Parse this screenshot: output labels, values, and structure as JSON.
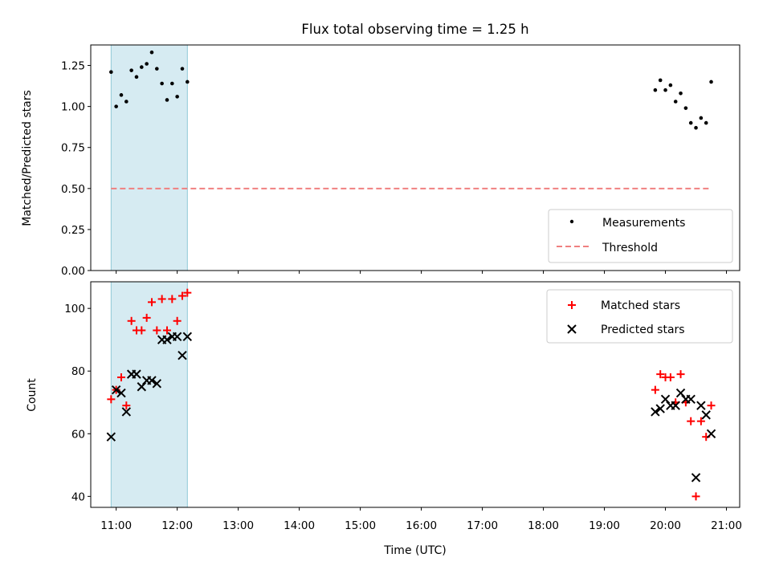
{
  "chart_data": [
    {
      "type": "scatter",
      "title": "Flux total observing time = 1.25 h",
      "xlabel": "",
      "ylabel": "Matched/Predicted stars",
      "xlim": [
        "10:35",
        "21:13"
      ],
      "ylim": [
        0,
        1.375
      ],
      "yticks": [
        "0.00",
        "0.25",
        "0.50",
        "0.75",
        "1.00",
        "1.25"
      ],
      "highlight_span": {
        "from": "10:55",
        "to": "12:10",
        "color": "#add8e6"
      },
      "legend_position": "lower-right",
      "series": [
        {
          "name": "Measurements",
          "color": "#000000",
          "marker": "dot",
          "x": [
            "10:55",
            "11:00",
            "11:05",
            "11:10",
            "11:15",
            "11:20",
            "11:25",
            "11:30",
            "11:35",
            "11:40",
            "11:45",
            "11:50",
            "11:55",
            "12:00",
            "12:05",
            "12:10",
            "19:50",
            "19:55",
            "20:00",
            "20:05",
            "20:10",
            "20:15",
            "20:20",
            "20:25",
            "20:30",
            "20:35",
            "20:40",
            "20:45"
          ],
          "y": [
            1.21,
            1.0,
            1.07,
            1.03,
            1.22,
            1.18,
            1.24,
            1.26,
            1.33,
            1.23,
            1.14,
            1.04,
            1.14,
            1.06,
            1.23,
            1.15,
            1.1,
            1.16,
            1.1,
            1.13,
            1.03,
            1.08,
            0.99,
            0.9,
            0.87,
            0.93,
            0.9,
            1.15
          ]
        },
        {
          "name": "Threshold",
          "color": "#f08080",
          "style": "dashed",
          "x": [
            "10:55",
            "20:45"
          ],
          "y": [
            0.5,
            0.5
          ]
        }
      ]
    },
    {
      "type": "scatter",
      "title": "",
      "xlabel": "Time (UTC)",
      "ylabel": "Count",
      "xlim": [
        "10:35",
        "21:13"
      ],
      "ylim": [
        36.5,
        108.5
      ],
      "yticks": [
        "40",
        "60",
        "80",
        "100"
      ],
      "xticks": [
        "11:00",
        "12:00",
        "13:00",
        "14:00",
        "15:00",
        "16:00",
        "17:00",
        "18:00",
        "19:00",
        "20:00",
        "21:00"
      ],
      "highlight_span": {
        "from": "10:55",
        "to": "12:10",
        "color": "#add8e6"
      },
      "legend_position": "upper-right",
      "series": [
        {
          "name": "Matched stars",
          "color": "#ff0000",
          "marker": "plus",
          "x": [
            "10:55",
            "11:00",
            "11:05",
            "11:10",
            "11:15",
            "11:20",
            "11:25",
            "11:30",
            "11:35",
            "11:40",
            "11:45",
            "11:50",
            "11:55",
            "12:00",
            "12:05",
            "12:10",
            "19:50",
            "19:55",
            "20:00",
            "20:05",
            "20:10",
            "20:15",
            "20:20",
            "20:25",
            "20:30",
            "20:35",
            "20:40",
            "20:45"
          ],
          "y": [
            71,
            74,
            78,
            69,
            96,
            93,
            93,
            97,
            102,
            93,
            103,
            93,
            103,
            96,
            104,
            105,
            74,
            79,
            78,
            78,
            70,
            79,
            70,
            64,
            40,
            64,
            59,
            69
          ]
        },
        {
          "name": "Predicted stars",
          "color": "#000000",
          "marker": "x",
          "x": [
            "10:55",
            "11:00",
            "11:05",
            "11:10",
            "11:15",
            "11:20",
            "11:25",
            "11:30",
            "11:35",
            "11:40",
            "11:45",
            "11:50",
            "11:55",
            "12:00",
            "12:05",
            "12:10",
            "19:50",
            "19:55",
            "20:00",
            "20:05",
            "20:10",
            "20:15",
            "20:20",
            "20:25",
            "20:30",
            "20:35",
            "20:40",
            "20:45"
          ],
          "y": [
            59,
            74,
            73,
            67,
            79,
            79,
            75,
            77,
            77,
            76,
            90,
            90,
            91,
            91,
            85,
            91,
            67,
            68,
            71,
            69,
            69,
            73,
            71,
            71,
            46,
            69,
            66,
            60
          ]
        }
      ]
    }
  ]
}
